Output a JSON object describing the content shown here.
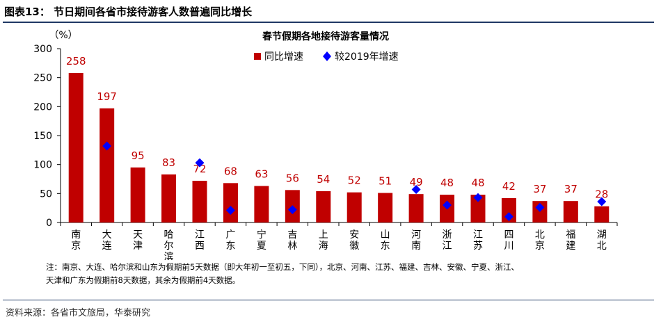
{
  "figure": {
    "title": "图表13：  节日期间各省市接待游客人数普遍同比增长",
    "note_line1": "注：南京、大连、哈尔滨和山东为假期前5天数据（即大年初一至初五，下同），北京、河南、江苏、福建、吉林、安徽、宁夏、浙江、",
    "note_line2": "天津和广东为假期前8天数据，其余为假期前4天数据。",
    "source": "资料来源：各省市文旅局，华泰研究"
  },
  "chart_data": {
    "type": "bar",
    "title": "春节假期各地接待游客量情况",
    "ylabel": "（%）",
    "ylim": [
      0,
      300
    ],
    "yticks": [
      0,
      50,
      100,
      150,
      200,
      250,
      300
    ],
    "categories": [
      "南京",
      "大连",
      "天津",
      "哈尔滨",
      "江西",
      "广东",
      "宁夏",
      "吉林",
      "上海",
      "安徽",
      "山东",
      "河南",
      "浙江",
      "江苏",
      "四川",
      "北京",
      "福建",
      "湖北"
    ],
    "series": [
      {
        "name": "同比增速",
        "type": "bar",
        "color": "#c00000",
        "label_color": "#c00000",
        "values": [
          258,
          197,
          95,
          83,
          72,
          68,
          63,
          56,
          54,
          52,
          51,
          49,
          48,
          48,
          42,
          37,
          37,
          28
        ],
        "labels": [
          "258",
          "197",
          "95",
          "83",
          "72",
          "68",
          "63",
          "56",
          "54",
          "52",
          "51",
          "49",
          "48",
          "48",
          "42",
          "37",
          "37",
          "28"
        ]
      },
      {
        "name": "较2019年增速",
        "type": "scatter",
        "marker": "diamond",
        "color": "#0000ff",
        "values": [
          null,
          132,
          null,
          null,
          103,
          21,
          null,
          22,
          null,
          null,
          null,
          57,
          30,
          43,
          10,
          26,
          null,
          36
        ]
      }
    ],
    "legend_position": "top-right",
    "grid": false
  }
}
